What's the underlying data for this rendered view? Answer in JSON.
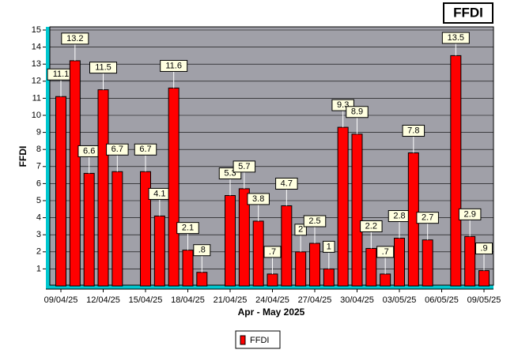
{
  "chart_data": {
    "type": "bar",
    "title": "FFDI",
    "x_label": "Apr - May 2025",
    "y_label": "FFDI",
    "categories": [
      "09/04/25",
      null,
      null,
      "12/04/25",
      null,
      null,
      "15/04/25",
      null,
      null,
      "18/04/25",
      null,
      null,
      "21/04/25",
      null,
      null,
      "24/04/25",
      null,
      null,
      "27/04/25",
      null,
      null,
      "30/04/25",
      null,
      null,
      "03/05/25",
      null,
      null,
      "06/05/25",
      null,
      null,
      "09/05/25"
    ],
    "series": [
      {
        "name": "FFDI",
        "color": "#ff0000",
        "values": [
          11.1,
          13.2,
          6.6,
          11.5,
          6.7,
          null,
          6.7,
          4.1,
          11.6,
          2.1,
          0.8,
          null,
          5.3,
          5.7,
          3.8,
          0.7,
          4.7,
          2,
          2.5,
          1,
          9.3,
          8.9,
          2.2,
          0.7,
          2.8,
          7.8,
          2.7,
          null,
          13.5,
          2.9,
          0.9
        ],
        "value_labels": [
          "11.1",
          "13.2",
          "6.6",
          "11.5",
          "6.7",
          null,
          "6.7",
          "4.1",
          "11.6",
          "2.1",
          ".8",
          null,
          "5.3",
          "5.7",
          "3.8",
          ".7",
          "4.7",
          "2",
          "2.5",
          "1",
          "9.3",
          "8.9",
          "2.2",
          ".7",
          "2.8",
          "7.8",
          "2.7",
          null,
          "13.5",
          "2.9",
          ".9"
        ]
      }
    ],
    "ylim": [
      0,
      15
    ],
    "yticks": [
      1,
      2,
      3,
      4,
      5,
      6,
      7,
      8,
      9,
      10,
      11,
      12,
      13,
      14,
      15
    ],
    "grid": true
  }
}
